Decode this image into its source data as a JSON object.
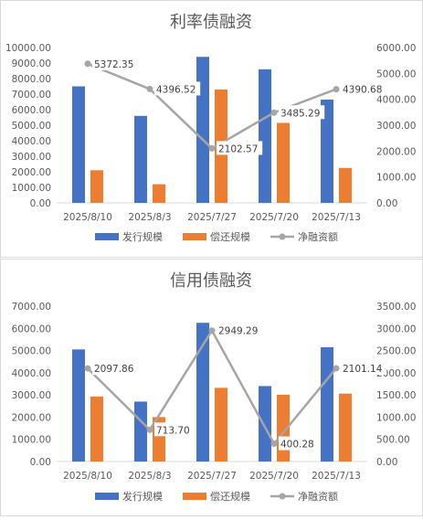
{
  "chart_data": [
    {
      "type": "bar",
      "title": "利率债融资",
      "categories": [
        "2025/8/10",
        "2025/8/3",
        "2025/7/27",
        "2025/7/20",
        "2025/7/13"
      ],
      "series": [
        {
          "name": "发行规模",
          "kind": "bar",
          "axis": "left",
          "color": "#4472C4",
          "values": [
            7500,
            5600,
            9400,
            8600,
            6650
          ]
        },
        {
          "name": "偿还规模",
          "kind": "bar",
          "axis": "left",
          "color": "#ED7D31",
          "values": [
            2100,
            1200,
            7300,
            5150,
            2250
          ]
        },
        {
          "name": "净融资额",
          "kind": "line",
          "axis": "right",
          "color": "#A5A5A5",
          "values": [
            5372.35,
            4396.52,
            2102.57,
            3485.29,
            4390.68
          ],
          "labels": [
            "5372.35",
            "4396.52",
            "2102.57",
            "3485.29",
            "4390.68"
          ]
        }
      ],
      "y_left": {
        "min": 0,
        "max": 10000,
        "step": 1000,
        "ticks": [
          "0.00",
          "1000.00",
          "2000.00",
          "3000.00",
          "4000.00",
          "5000.00",
          "6000.00",
          "7000.00",
          "8000.00",
          "9000.00",
          "10000.00"
        ]
      },
      "y_right": {
        "min": 0,
        "max": 6000,
        "step": 1000,
        "ticks": [
          "0.00",
          "1000.00",
          "2000.00",
          "3000.00",
          "4000.00",
          "5000.00",
          "6000.00"
        ]
      },
      "legend_position": "bottom",
      "grid": false
    },
    {
      "type": "bar",
      "title": "信用债融资",
      "categories": [
        "2025/8/10",
        "2025/8/3",
        "2025/7/27",
        "2025/7/20",
        "2025/7/13"
      ],
      "series": [
        {
          "name": "发行规模",
          "kind": "bar",
          "axis": "left",
          "color": "#4472C4",
          "values": [
            5050,
            2700,
            6250,
            3400,
            5150
          ]
        },
        {
          "name": "偿还规模",
          "kind": "bar",
          "axis": "left",
          "color": "#ED7D31",
          "values": [
            2930,
            2000,
            3320,
            3010,
            3060
          ]
        },
        {
          "name": "净融资额",
          "kind": "line",
          "axis": "right",
          "color": "#A5A5A5",
          "values": [
            2097.86,
            713.7,
            2949.29,
            400.28,
            2101.14
          ],
          "labels": [
            "2097.86",
            "713.70",
            "2949.29",
            "400.28",
            "2101.14"
          ]
        }
      ],
      "y_left": {
        "min": 0,
        "max": 7000,
        "step": 1000,
        "ticks": [
          "0.00",
          "1000.00",
          "2000.00",
          "3000.00",
          "4000.00",
          "5000.00",
          "6000.00",
          "7000.00"
        ]
      },
      "y_right": {
        "min": 0,
        "max": 3500,
        "step": 500,
        "ticks": [
          "0.00",
          "500.00",
          "1000.00",
          "1500.00",
          "2000.00",
          "2500.00",
          "3000.00",
          "3500.00"
        ]
      },
      "legend_position": "bottom",
      "grid": false
    }
  ]
}
